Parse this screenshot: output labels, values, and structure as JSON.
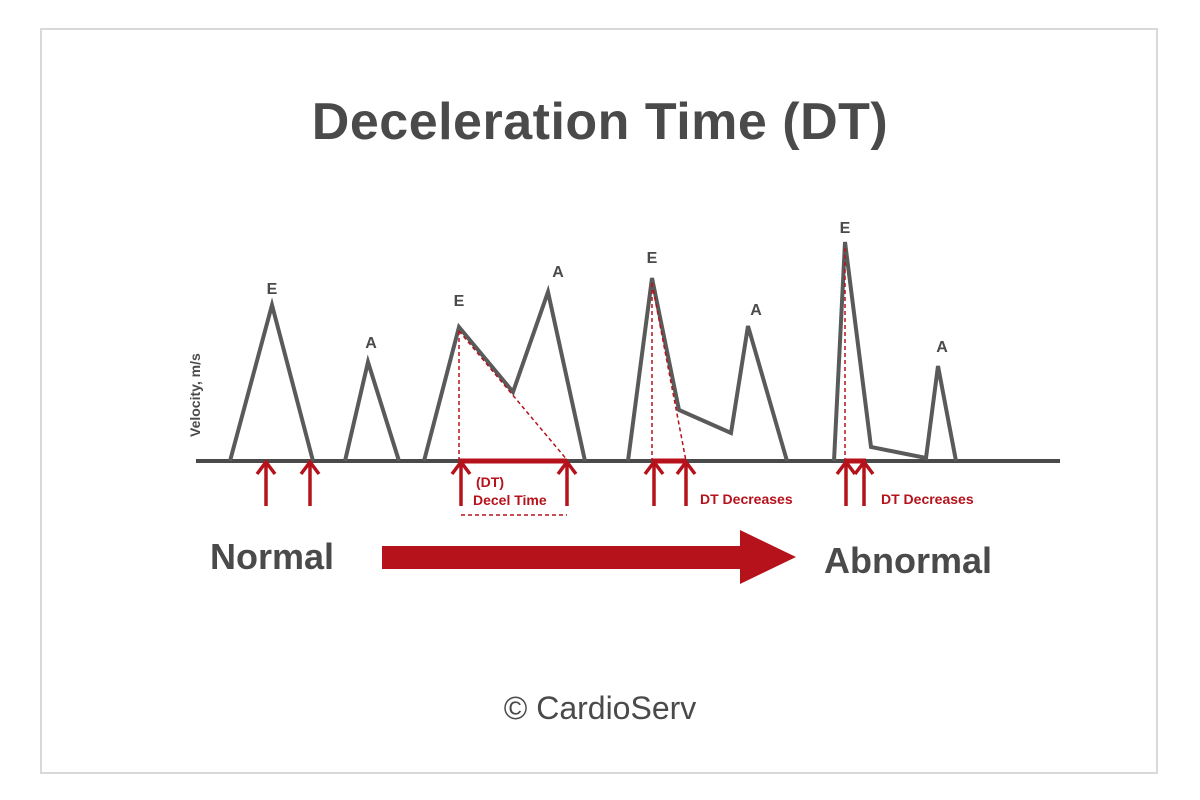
{
  "title": "Deceleration Time (DT)",
  "y_axis_label": "Velocity, m/s",
  "peak_labels": {
    "e1": "E",
    "a1": "A",
    "e2": "E",
    "a2": "A",
    "e3": "E",
    "a3": "A",
    "e4": "E",
    "a4": "A"
  },
  "annotations": {
    "dt_short": "(DT)",
    "decel_time": "Decel Time",
    "dt_decreases_1": "DT Decreases",
    "dt_decreases_2": "DT Decreases"
  },
  "progression": {
    "start_label": "Normal",
    "end_label": "Abnormal"
  },
  "copyright": "© CardioServ",
  "colors": {
    "text_gray": "#4a4a4a",
    "waveform_gray": "#5a5a5a",
    "accent_red": "#b5121b",
    "border": "#d9d9d9"
  }
}
